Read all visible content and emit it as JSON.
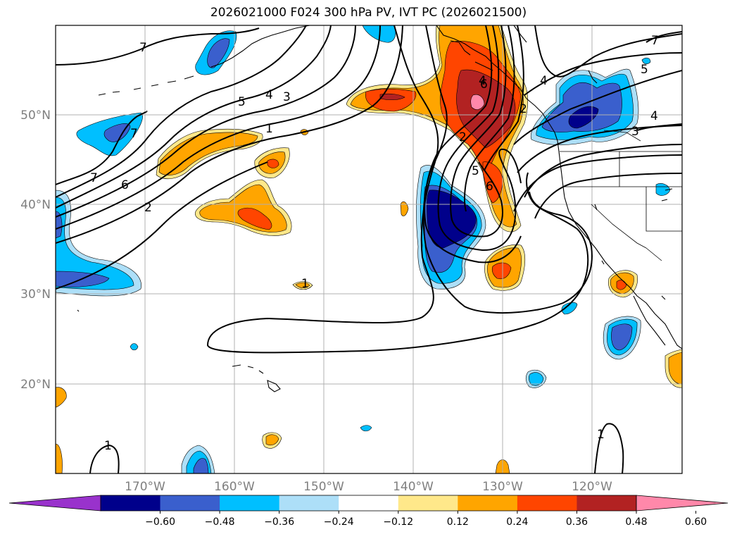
{
  "title": "2026021000 F024 300 hPa PV, IVT PC (2026021500)",
  "lat_labels": [
    "50°N",
    "40°N",
    "30°N",
    "20°N"
  ],
  "lon_labels": [
    "170°W",
    "160°W",
    "150°W",
    "140°W",
    "130°W",
    "120°W"
  ],
  "colorbar": {
    "tick_labels": [
      "−0.60",
      "−0.48",
      "−0.36",
      "−0.24",
      "−0.12",
      "0.12",
      "0.24",
      "0.36",
      "0.48",
      "0.60"
    ],
    "colors": [
      "#9932CC",
      "#00008B",
      "#3A5FCD",
      "#00BFFF",
      "#ADDFF8",
      "#FFFFFF",
      "#FFE88A",
      "#FFA500",
      "#FF4500",
      "#B22222",
      "#FF88AA"
    ]
  },
  "contour_labels": [
    "7",
    "7",
    "7",
    "6",
    "5",
    "4",
    "3",
    "2",
    "1",
    "1",
    "1",
    "7",
    "6",
    "5",
    "4",
    "4",
    "3",
    "2",
    "2",
    "6",
    "5",
    "4",
    "1"
  ]
}
